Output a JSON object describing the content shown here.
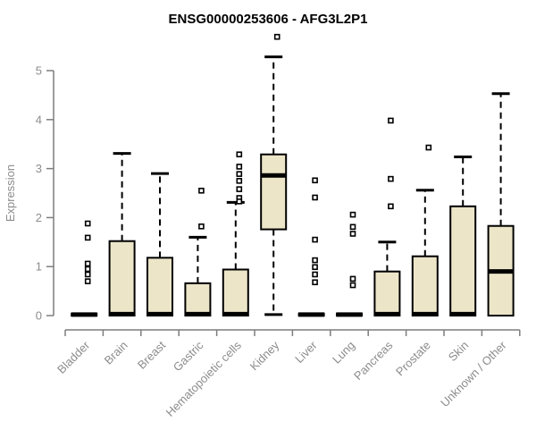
{
  "window": {
    "background": "#ffffff"
  },
  "chart_data": {
    "type": "box",
    "title": "ENSG00000253606 - AFG3L2P1",
    "ylabel": "Expression",
    "xlabel": "",
    "ylim": [
      0,
      5.8
    ],
    "yticks": [
      0,
      1,
      2,
      3,
      4,
      5
    ],
    "grid": false,
    "legend": null,
    "colors": {
      "box_fill": "#ece5c8",
      "box_stroke": "#000000",
      "median": "#000000",
      "whisker": "#000000",
      "outlier_stroke": "#000000",
      "outlier_fill": "#ffffff",
      "axis": "#7d7d7d",
      "tick_text": "#8c8c8c",
      "title_text": "#000000"
    },
    "categories": [
      "Bladder",
      "Brain",
      "Breast",
      "Gastric",
      "Hematopoietic cells",
      "Kidney",
      "Liver",
      "Lung",
      "Pancreas",
      "Prostate",
      "Skin",
      "Unknown / Other"
    ],
    "boxes": [
      {
        "category": "Bladder",
        "q1": 0,
        "median": 0.02,
        "q3": 0.04,
        "whisker_low": 0,
        "whisker_high": 0.04,
        "outliers": [
          1.88,
          1.59,
          1.06,
          0.95,
          0.84,
          0.7
        ]
      },
      {
        "category": "Brain",
        "q1": 0,
        "median": 0.03,
        "q3": 1.52,
        "whisker_low": 0,
        "whisker_high": 3.31,
        "outliers": []
      },
      {
        "category": "Breast",
        "q1": 0,
        "median": 0.03,
        "q3": 1.18,
        "whisker_low": 0,
        "whisker_high": 2.9,
        "outliers": []
      },
      {
        "category": "Gastric",
        "q1": 0,
        "median": 0.03,
        "q3": 0.66,
        "whisker_low": 0,
        "whisker_high": 1.6,
        "outliers": [
          2.55,
          1.82
        ]
      },
      {
        "category": "Hematopoietic cells",
        "q1": 0,
        "median": 0.03,
        "q3": 0.94,
        "whisker_low": 0,
        "whisker_high": 2.31,
        "outliers": [
          3.29,
          3.04,
          2.89,
          2.75,
          2.58,
          2.4,
          2.33
        ]
      },
      {
        "category": "Kidney",
        "q1": 1.76,
        "median": 2.86,
        "q3": 3.29,
        "whisker_low": 0.02,
        "whisker_high": 5.28,
        "outliers": [
          5.69
        ]
      },
      {
        "category": "Liver",
        "q1": 0,
        "median": 0.02,
        "q3": 0.04,
        "whisker_low": 0,
        "whisker_high": 0.04,
        "outliers": [
          2.76,
          2.41,
          1.55,
          1.13,
          0.99,
          0.84,
          0.68
        ]
      },
      {
        "category": "Lung",
        "q1": 0,
        "median": 0.02,
        "q3": 0.04,
        "whisker_low": 0,
        "whisker_high": 0.04,
        "outliers": [
          2.06,
          1.81,
          1.67,
          0.75,
          0.62
        ]
      },
      {
        "category": "Pancreas",
        "q1": 0,
        "median": 0.03,
        "q3": 0.9,
        "whisker_low": 0,
        "whisker_high": 1.5,
        "outliers": [
          3.98,
          2.79,
          2.23
        ]
      },
      {
        "category": "Prostate",
        "q1": 0,
        "median": 0.03,
        "q3": 1.21,
        "whisker_low": 0,
        "whisker_high": 2.56,
        "outliers": [
          3.43
        ]
      },
      {
        "category": "Skin",
        "q1": 0,
        "median": 0.03,
        "q3": 2.23,
        "whisker_low": 0,
        "whisker_high": 3.24,
        "outliers": []
      },
      {
        "category": "Unknown / Other",
        "q1": 0,
        "median": 0.9,
        "q3": 1.83,
        "whisker_low": 0,
        "whisker_high": 4.53,
        "outliers": []
      }
    ]
  }
}
